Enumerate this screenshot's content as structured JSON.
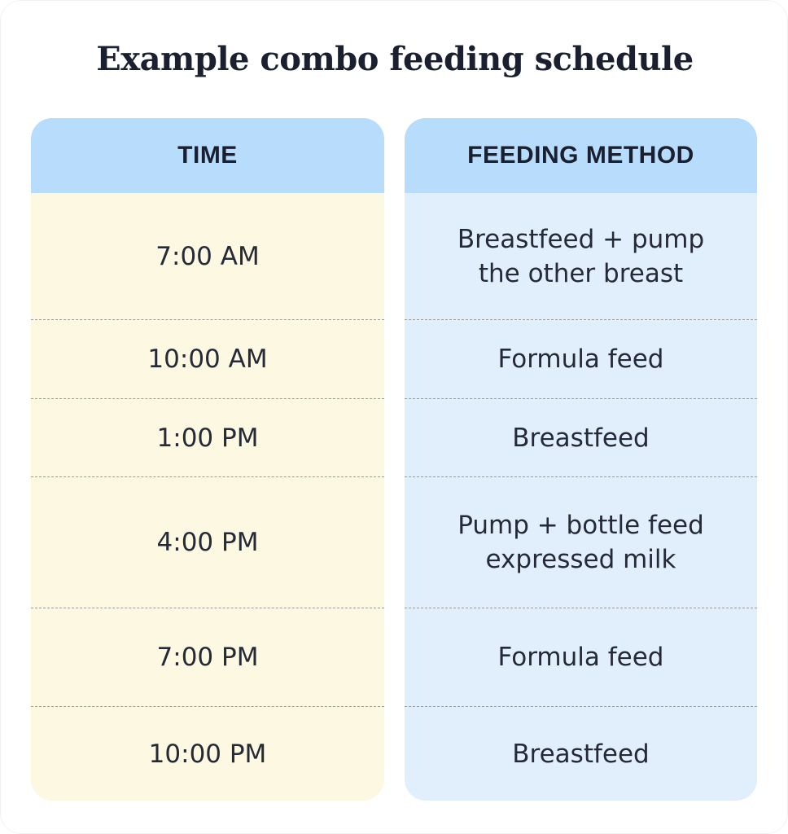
{
  "title": "Example combo feeding schedule",
  "table": {
    "headers": {
      "time": "TIME",
      "method": "FEEDING METHOD"
    },
    "rows": [
      {
        "time": "7:00 AM",
        "method": "Breastfeed + pump\nthe other breast"
      },
      {
        "time": "10:00 AM",
        "method": "Formula feed"
      },
      {
        "time": "1:00 PM",
        "method": "Breastfeed"
      },
      {
        "time": "4:00 PM",
        "method": "Pump + bottle feed\nexpressed milk"
      },
      {
        "time": "7:00 PM",
        "method": "Formula feed"
      },
      {
        "time": "10:00 PM",
        "method": "Breastfeed"
      }
    ]
  },
  "colors": {
    "header_bg": "#b7dcfc",
    "time_column_bg": "#fdf8e2",
    "method_column_bg": "#e1effd",
    "text": "#1b2030"
  }
}
